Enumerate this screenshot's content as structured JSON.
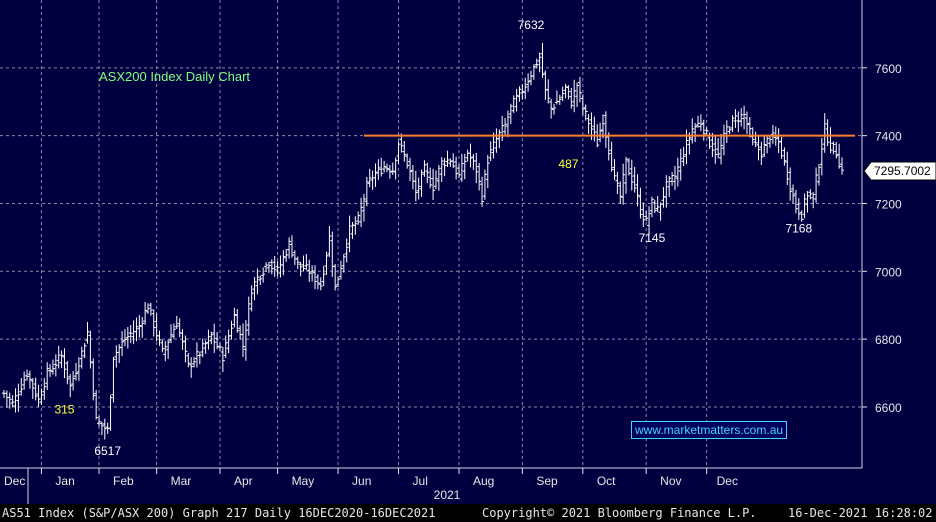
{
  "chart_data": {
    "type": "ohlc-bar",
    "title": "ASX200 Index Daily Chart",
    "x_tick_labels": [
      "Dec",
      "Jan",
      "Feb",
      "Mar",
      "Apr",
      "May",
      "Jun",
      "Jul",
      "Aug",
      "Sep",
      "Oct",
      "Nov",
      "Dec"
    ],
    "x_year_label": "2021",
    "y_ticks": [
      6600,
      6800,
      7000,
      7200,
      7400,
      7600
    ],
    "ylim": [
      6420,
      7800
    ],
    "grid": true,
    "resistance_level": 7400,
    "last_price_label": "7295.7002",
    "annotations": [
      {
        "text": "7632",
        "color": "#ffffff"
      },
      {
        "text": "487",
        "color": "#ffff33"
      },
      {
        "text": "315",
        "color": "#ffff33"
      },
      {
        "text": "6517",
        "color": "#ffffff"
      },
      {
        "text": "7145",
        "color": "#ffffff"
      },
      {
        "text": "7168",
        "color": "#ffffff"
      }
    ],
    "close_path": [
      [
        0,
        6640
      ],
      [
        3,
        6610
      ],
      [
        8,
        6700
      ],
      [
        12,
        6620
      ],
      [
        15,
        6700
      ],
      [
        20,
        6750
      ],
      [
        23,
        6660
      ],
      [
        27,
        6760
      ],
      [
        29,
        6820
      ],
      [
        32,
        6560
      ],
      [
        36,
        6530
      ],
      [
        38,
        6750
      ],
      [
        42,
        6800
      ],
      [
        47,
        6840
      ],
      [
        50,
        6900
      ],
      [
        55,
        6760
      ],
      [
        60,
        6850
      ],
      [
        64,
        6720
      ],
      [
        68,
        6760
      ],
      [
        72,
        6810
      ],
      [
        76,
        6750
      ],
      [
        80,
        6870
      ],
      [
        83,
        6780
      ],
      [
        86,
        6950
      ],
      [
        88,
        6980
      ],
      [
        92,
        7030
      ],
      [
        95,
        7000
      ],
      [
        99,
        7080
      ],
      [
        102,
        7020
      ],
      [
        106,
        7000
      ],
      [
        110,
        6960
      ],
      [
        113,
        7100
      ],
      [
        115,
        6950
      ],
      [
        118,
        7050
      ],
      [
        120,
        7120
      ],
      [
        123,
        7150
      ],
      [
        126,
        7250
      ],
      [
        128,
        7280
      ],
      [
        132,
        7310
      ],
      [
        135,
        7300
      ],
      [
        137,
        7380
      ],
      [
        140,
        7320
      ],
      [
        143,
        7230
      ],
      [
        146,
        7300
      ],
      [
        149,
        7250
      ],
      [
        152,
        7320
      ],
      [
        155,
        7330
      ],
      [
        158,
        7280
      ],
      [
        161,
        7350
      ],
      [
        164,
        7300
      ],
      [
        166,
        7220
      ],
      [
        168,
        7330
      ],
      [
        171,
        7390
      ],
      [
        174,
        7430
      ],
      [
        176,
        7480
      ],
      [
        178,
        7510
      ],
      [
        181,
        7550
      ],
      [
        184,
        7600
      ],
      [
        186,
        7632
      ],
      [
        188,
        7530
      ],
      [
        190,
        7480
      ],
      [
        193,
        7510
      ],
      [
        195,
        7540
      ],
      [
        197,
        7500
      ],
      [
        199,
        7550
      ],
      [
        201,
        7480
      ],
      [
        204,
        7420
      ],
      [
        206,
        7380
      ],
      [
        208,
        7450
      ],
      [
        210,
        7360
      ],
      [
        212,
        7270
      ],
      [
        214,
        7220
      ],
      [
        216,
        7320
      ],
      [
        219,
        7250
      ],
      [
        221,
        7180
      ],
      [
        223,
        7145
      ],
      [
        225,
        7200
      ],
      [
        227,
        7180
      ],
      [
        230,
        7250
      ],
      [
        233,
        7280
      ],
      [
        236,
        7350
      ],
      [
        239,
        7420
      ],
      [
        242,
        7440
      ],
      [
        245,
        7380
      ],
      [
        248,
        7340
      ],
      [
        251,
        7420
      ],
      [
        254,
        7450
      ],
      [
        257,
        7460
      ],
      [
        260,
        7380
      ],
      [
        263,
        7350
      ],
      [
        266,
        7400
      ],
      [
        269,
        7380
      ],
      [
        271,
        7320
      ],
      [
        273,
        7250
      ],
      [
        275,
        7190
      ],
      [
        277,
        7168
      ],
      [
        279,
        7230
      ],
      [
        281,
        7220
      ],
      [
        283,
        7320
      ],
      [
        285,
        7420
      ],
      [
        287,
        7370
      ],
      [
        289,
        7350
      ],
      [
        291,
        7296
      ]
    ]
  },
  "watermark": "www.marketmatters.com.au",
  "footer": {
    "left": "AS51 Index (S&P/ASX 200) Graph 217  Daily 16DEC2020-16DEC2021",
    "center": "Copyright© 2021 Bloomberg Finance L.P.",
    "right": "16-Dec-2021 16:28:02"
  },
  "colors": {
    "background": "#000040",
    "grid": "#8a8aa8",
    "bars": "#ffffff",
    "resistance": "#ff7f2a",
    "title": "#7fff7f",
    "highlight": "#ffff33",
    "watermark": "#3fd6ff"
  }
}
